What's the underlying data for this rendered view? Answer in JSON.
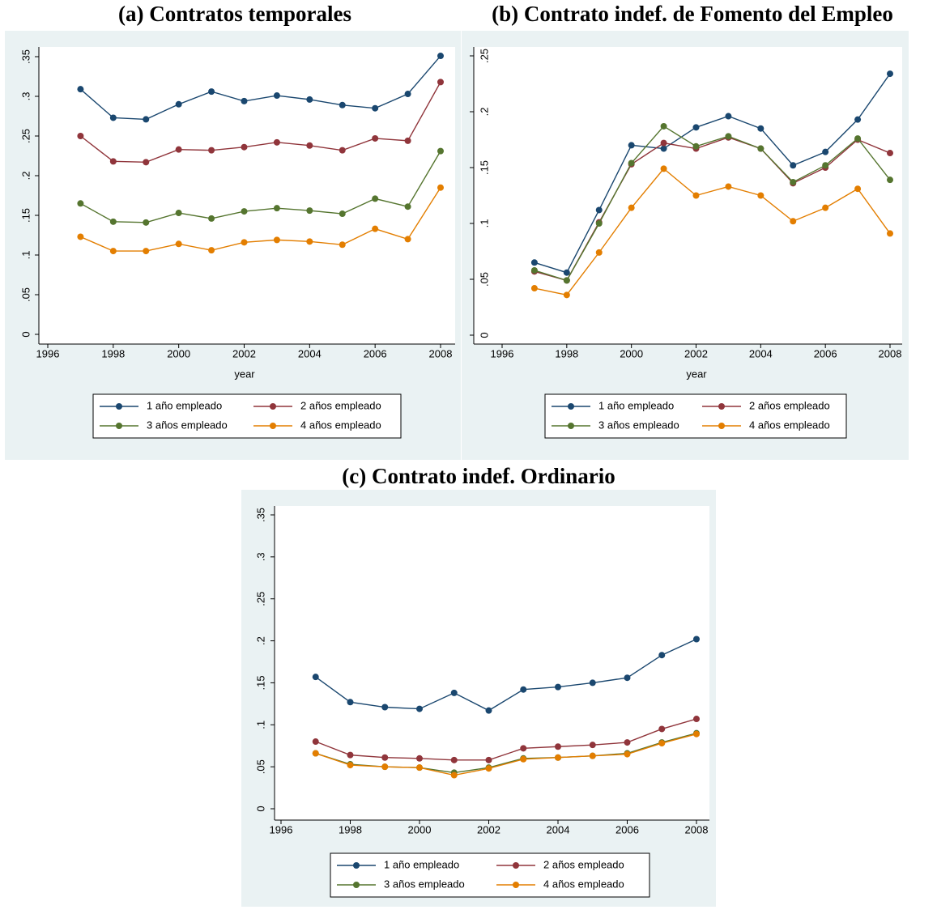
{
  "chart_data": [
    {
      "type": "line",
      "title": "(a) Contratos temporales",
      "x_label": "year",
      "x": [
        1997,
        1998,
        1999,
        2000,
        2001,
        2002,
        2003,
        2004,
        2005,
        2006,
        2007,
        2008
      ],
      "xlim": [
        1996,
        2008
      ],
      "xticks": [
        1996,
        1998,
        2000,
        2002,
        2004,
        2006,
        2008
      ],
      "ylim": [
        0,
        0.35
      ],
      "yticks": [
        0,
        {
          "value": 0.05,
          "label": ".05"
        },
        {
          "value": 0.1,
          "label": ".1"
        },
        {
          "value": 0.15,
          "label": ".15"
        },
        {
          "value": 0.2,
          "label": ".2"
        },
        {
          "value": 0.25,
          "label": ".25"
        },
        {
          "value": 0.3,
          "label": ".3"
        },
        {
          "value": 0.35,
          "label": ".35"
        }
      ],
      "series": [
        {
          "name": "1 año empleado",
          "color": "#1a476f",
          "values": [
            0.309,
            0.273,
            0.271,
            0.29,
            0.306,
            0.294,
            0.301,
            0.296,
            0.289,
            0.285,
            0.303,
            0.351
          ]
        },
        {
          "name": "2 años empleado",
          "color": "#90353b",
          "values": [
            0.25,
            0.218,
            0.217,
            0.233,
            0.232,
            0.236,
            0.242,
            0.238,
            0.232,
            0.247,
            0.244,
            0.318
          ]
        },
        {
          "name": "3 años empleado",
          "color": "#55752f",
          "values": [
            0.165,
            0.142,
            0.141,
            0.153,
            0.146,
            0.155,
            0.159,
            0.156,
            0.152,
            0.171,
            0.161,
            0.231
          ]
        },
        {
          "name": "4 años empleado",
          "color": "#e37e00",
          "values": [
            0.123,
            0.105,
            0.105,
            0.114,
            0.106,
            0.116,
            0.119,
            0.117,
            0.113,
            0.133,
            0.12,
            0.185
          ]
        }
      ]
    },
    {
      "type": "line",
      "title": "(b) Contrato indef. de Fomento del Empleo",
      "x_label": "year",
      "x": [
        1997,
        1998,
        1999,
        2000,
        2001,
        2002,
        2003,
        2004,
        2005,
        2006,
        2007,
        2008
      ],
      "xlim": [
        1996,
        2008
      ],
      "xticks": [
        1996,
        1998,
        2000,
        2002,
        2004,
        2006,
        2008
      ],
      "ylim": [
        0,
        0.25
      ],
      "yticks": [
        0,
        {
          "value": 0.05,
          "label": ".05"
        },
        {
          "value": 0.1,
          "label": ".1"
        },
        {
          "value": 0.15,
          "label": ".15"
        },
        {
          "value": 0.2,
          "label": ".2"
        },
        {
          "value": 0.25,
          "label": ".25"
        }
      ],
      "series": [
        {
          "name": "1 año empleado",
          "color": "#1a476f",
          "values": [
            0.065,
            0.056,
            0.112,
            0.17,
            0.167,
            0.186,
            0.196,
            0.185,
            0.152,
            0.164,
            0.193,
            0.234
          ]
        },
        {
          "name": "2 años empleado",
          "color": "#90353b",
          "values": [
            0.057,
            0.049,
            0.101,
            0.153,
            0.172,
            0.167,
            0.177,
            0.167,
            0.136,
            0.15,
            0.175,
            0.163
          ]
        },
        {
          "name": "3 años empleado",
          "color": "#55752f",
          "values": [
            0.058,
            0.049,
            0.1,
            0.154,
            0.187,
            0.169,
            0.178,
            0.167,
            0.137,
            0.152,
            0.176,
            0.139
          ]
        },
        {
          "name": "4 años empleado",
          "color": "#e37e00",
          "values": [
            0.042,
            0.036,
            0.074,
            0.114,
            0.149,
            0.125,
            0.133,
            0.125,
            0.102,
            0.114,
            0.131,
            0.091
          ]
        }
      ]
    },
    {
      "type": "line",
      "title": "(c) Contrato indef. Ordinario",
      "x": [
        1997,
        1998,
        1999,
        2000,
        2001,
        2002,
        2003,
        2004,
        2005,
        2006,
        2007,
        2008
      ],
      "xlim": [
        1996,
        2008
      ],
      "xticks": [
        1996,
        1998,
        2000,
        2002,
        2004,
        2006,
        2008
      ],
      "ylim": [
        0,
        0.35
      ],
      "yticks": [
        0,
        {
          "value": 0.05,
          "label": ".05"
        },
        {
          "value": 0.1,
          "label": ".1"
        },
        {
          "value": 0.15,
          "label": ".15"
        },
        {
          "value": 0.2,
          "label": ".2"
        },
        {
          "value": 0.25,
          "label": ".25"
        },
        {
          "value": 0.3,
          "label": ".3"
        },
        {
          "value": 0.35,
          "label": ".35"
        }
      ],
      "series": [
        {
          "name": "1 año empleado",
          "color": "#1a476f",
          "values": [
            0.157,
            0.127,
            0.121,
            0.119,
            0.138,
            0.117,
            0.142,
            0.145,
            0.15,
            0.156,
            0.183,
            0.202
          ]
        },
        {
          "name": "2 años empleado",
          "color": "#90353b",
          "values": [
            0.08,
            0.064,
            0.061,
            0.06,
            0.058,
            0.058,
            0.072,
            0.074,
            0.076,
            0.079,
            0.095,
            0.107
          ]
        },
        {
          "name": "3 años empleado",
          "color": "#55752f",
          "values": [
            0.066,
            0.053,
            0.05,
            0.049,
            0.043,
            0.049,
            0.06,
            0.061,
            0.063,
            0.066,
            0.079,
            0.09
          ]
        },
        {
          "name": "4 años empleado",
          "color": "#e37e00",
          "values": [
            0.066,
            0.052,
            0.05,
            0.049,
            0.04,
            0.048,
            0.059,
            0.061,
            0.063,
            0.065,
            0.078,
            0.089
          ]
        }
      ]
    }
  ]
}
